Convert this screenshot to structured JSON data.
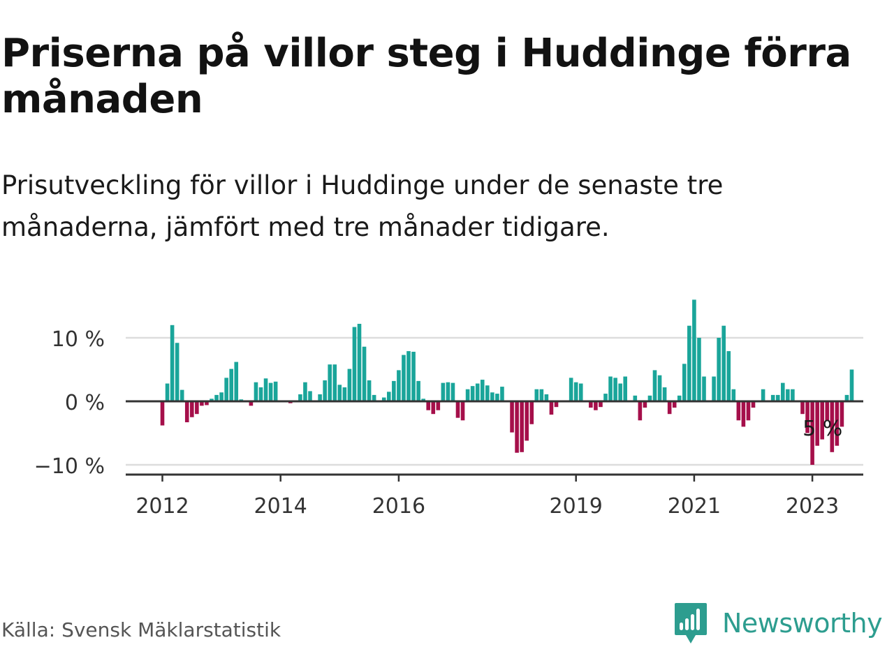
{
  "title": "Priserna på villor steg i Huddinge förra månaden",
  "subtitle": "Prisutveckling för villor i Huddinge under de senaste tre månaderna, jämfört med tre månader tidigare.",
  "source": "Källa: Svensk Mäklarstatistik",
  "brand": {
    "name": "Newsworthy",
    "icon": "newsworthy-logo-icon",
    "color": "#2d9d8f"
  },
  "colors": {
    "positive": "#1aa59a",
    "negative": "#a50f4a",
    "gridline": "#dddddd",
    "zero_line": "#333333",
    "axis": "#333333"
  },
  "chart_data": {
    "type": "bar",
    "title": "Priserna på villor steg i Huddinge förra månaden",
    "unit": "%",
    "ylim": [
      -11,
      16
    ],
    "y_ticks": [
      {
        "value": 10,
        "label": "10 %"
      },
      {
        "value": 0,
        "label": "0 %"
      },
      {
        "value": -10,
        "label": "−10 %"
      }
    ],
    "x_ticks": [
      {
        "label": "2012",
        "index": 0
      },
      {
        "label": "2014",
        "index": 24
      },
      {
        "label": "2016",
        "index": 48
      },
      {
        "label": "2019",
        "index": 84
      },
      {
        "label": "2021",
        "index": 108
      },
      {
        "label": "2023",
        "index": 132
      }
    ],
    "annotation": {
      "label": "5 %",
      "index": 136
    },
    "start": "2012-01",
    "values": [
      -3.8,
      2.8,
      12.0,
      9.2,
      1.8,
      -3.3,
      -2.5,
      -2.0,
      -0.7,
      -0.6,
      0.4,
      1.0,
      1.4,
      3.7,
      5.1,
      6.2,
      0.3,
      0.0,
      -0.7,
      3.0,
      2.2,
      3.6,
      2.9,
      3.1,
      0.0,
      0.0,
      -0.3,
      0.0,
      1.1,
      3.0,
      1.6,
      0.0,
      1.1,
      3.3,
      5.8,
      5.8,
      2.6,
      2.2,
      5.1,
      11.7,
      12.2,
      8.6,
      3.3,
      1.0,
      0.0,
      0.6,
      1.5,
      3.2,
      4.9,
      7.3,
      7.9,
      7.8,
      3.2,
      0.4,
      -1.4,
      -2.0,
      -1.4,
      2.9,
      3.0,
      2.9,
      -2.6,
      -3.0,
      1.9,
      2.4,
      2.8,
      3.4,
      2.5,
      1.4,
      1.2,
      2.3,
      0.0,
      -4.9,
      -8.1,
      -8.0,
      -6.2,
      -3.6,
      1.9,
      1.9,
      1.1,
      -2.1,
      -0.9,
      0.0,
      0.0,
      3.7,
      3.0,
      2.8,
      0.0,
      -1.0,
      -1.4,
      -0.9,
      1.2,
      3.9,
      3.7,
      2.8,
      3.9,
      0.0,
      0.9,
      -3.0,
      -1.0,
      0.9,
      4.9,
      4.1,
      2.2,
      -2.0,
      -1.0,
      0.9,
      5.9,
      11.9,
      16.0,
      10.0,
      3.9,
      0.0,
      3.9,
      10.0,
      11.9,
      7.9,
      1.9,
      -3.0,
      -4.0,
      -3.0,
      -1.0,
      0.0,
      1.9,
      0.0,
      1.0,
      1.0,
      2.9,
      1.9,
      1.9,
      0.0,
      -2.0,
      -5.0,
      -10.0,
      -7.0,
      -6.0,
      -3.0,
      -8.0,
      -7.0,
      -4.0,
      1.0,
      5.0
    ]
  }
}
